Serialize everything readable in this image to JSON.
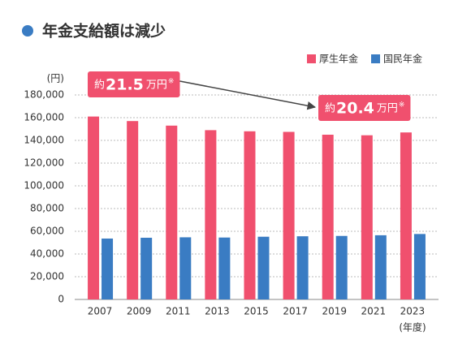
{
  "chart_data": {
    "type": "bar",
    "title": "年金支給額は減少",
    "y_unit": "(円)",
    "x_unit": "(年度)",
    "categories": [
      "2007",
      "2009",
      "2011",
      "2013",
      "2015",
      "2017",
      "2019",
      "2021",
      "2023"
    ],
    "series": [
      {
        "name": "厚生年金",
        "color": "#f0506e",
        "values": [
          161000,
          157000,
          153000,
          149000,
          148000,
          147500,
          145000,
          144500,
          147000
        ]
      },
      {
        "name": "国民年金",
        "color": "#3a7cc3",
        "values": [
          53600,
          54300,
          54700,
          54500,
          55200,
          55600,
          55900,
          56500,
          57600
        ]
      }
    ],
    "ylim": [
      0,
      180000
    ],
    "yticks": [
      0,
      {
        "value": 20000,
        "label": "20,000"
      },
      {
        "value": 40000,
        "label": "40,000"
      },
      {
        "value": 60000,
        "label": "60,000"
      },
      {
        "value": 80000,
        "label": "80,000"
      },
      {
        "value": 100000,
        "label": "100,000"
      },
      {
        "value": 120000,
        "label": "120,000"
      },
      {
        "value": 140000,
        "label": "140,000"
      },
      {
        "value": 160000,
        "label": "160,000"
      },
      {
        "value": 180000,
        "label": "180,000"
      }
    ],
    "grid": true,
    "annotations": [
      {
        "prefix": "約",
        "number": "21.5",
        "unit": "万円",
        "note": "※"
      },
      {
        "prefix": "約",
        "number": "20.4",
        "unit": "万円",
        "note": "※"
      }
    ]
  }
}
